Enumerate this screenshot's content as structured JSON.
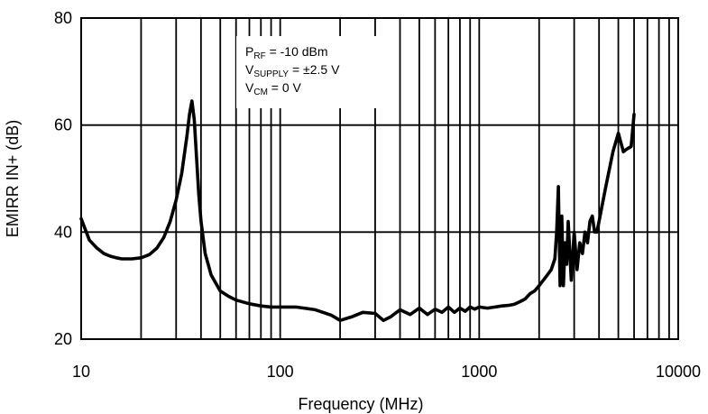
{
  "chart_data": {
    "type": "line",
    "title": "",
    "xlabel": "Frequency (MHz)",
    "ylabel": "EMIRR IN+ (dB)",
    "xscale": "log",
    "xlim": [
      10,
      10000
    ],
    "ylim": [
      20,
      80
    ],
    "grid": true,
    "x_ticks": [
      "10",
      "100",
      "1000",
      "10000"
    ],
    "y_ticks": [
      "20",
      "40",
      "60",
      "80"
    ],
    "annotations": [
      {
        "main": "P",
        "sub": "RF",
        "rest": " = -10 dBm"
      },
      {
        "main": "V",
        "sub": "SUPPLY",
        "rest": " = ±2.5 V"
      },
      {
        "main": "V",
        "sub": "CM",
        "rest": " = 0 V"
      }
    ],
    "series": [
      {
        "x": [
          10,
          11,
          12,
          13,
          14,
          15,
          16,
          17,
          18,
          20,
          22,
          24,
          26,
          28,
          30,
          32,
          34,
          35,
          36,
          37,
          38,
          39,
          40,
          42,
          45,
          50,
          55,
          60,
          70,
          80,
          90,
          100,
          120,
          150,
          180,
          200,
          230,
          260,
          300,
          330,
          360,
          400,
          450,
          500,
          550,
          600,
          650,
          700,
          750,
          800,
          850,
          900,
          950,
          1000,
          1100,
          1200,
          1300,
          1400,
          1500,
          1600,
          1700,
          1800,
          1900,
          2000,
          2100,
          2200,
          2300,
          2400,
          2450,
          2500,
          2550,
          2600,
          2650,
          2700,
          2750,
          2800,
          2900,
          3000,
          3100,
          3200,
          3300,
          3400,
          3500,
          3600,
          3700,
          3800,
          3900,
          4000,
          4300,
          4700,
          5000,
          5300,
          5500,
          5800,
          6000
        ],
        "y": [
          42.5,
          38.5,
          37,
          36,
          35.5,
          35.2,
          35,
          35,
          35,
          35.2,
          35.8,
          37,
          39,
          42,
          46,
          51,
          58,
          62,
          64.5,
          61,
          54,
          47,
          42,
          36,
          32,
          29,
          28,
          27.3,
          26.6,
          26.2,
          26,
          26,
          26,
          25.5,
          24.5,
          23.5,
          24.2,
          25,
          24.8,
          23.5,
          24.2,
          25.5,
          24.6,
          25.8,
          24.6,
          25.6,
          25,
          26,
          25,
          25.8,
          25.2,
          26,
          25.6,
          26,
          25.8,
          26,
          26.2,
          26.3,
          26.5,
          27,
          27.5,
          28.5,
          29,
          30,
          31,
          32,
          33,
          35,
          40,
          48.5,
          30,
          43,
          30,
          38,
          34,
          42,
          31,
          40,
          33,
          38,
          36,
          40,
          38,
          42,
          43,
          40,
          40,
          42,
          48,
          55,
          58.5,
          55,
          55.5,
          56,
          62
        ]
      }
    ]
  }
}
